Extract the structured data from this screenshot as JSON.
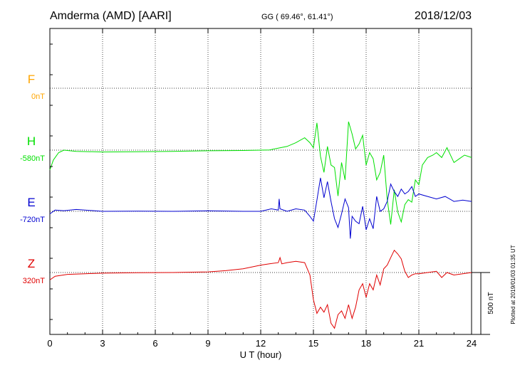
{
  "header": {
    "station": "Amderma (AMD)  [AARI]",
    "coords": "GG ( 69.46°,  61.41°)",
    "date": "2018/12/03"
  },
  "plot_note": "Plotted at 2019/01/03 01:35 UT",
  "scale_bar_label": "500 nT",
  "chart_data": {
    "type": "line",
    "xlabel": "U T (hour)",
    "xlim": [
      0,
      24
    ],
    "xticks": [
      0,
      3,
      6,
      9,
      12,
      15,
      18,
      21,
      24
    ],
    "grid": true,
    "scale_bar_nT": 500,
    "series": [
      {
        "name": "F",
        "baseline": "0nT",
        "color": "#ffa500",
        "x": [],
        "values": []
      },
      {
        "name": "H",
        "baseline": "-580nT",
        "color": "#00e000",
        "x": [
          0,
          0.2,
          0.5,
          0.8,
          1.5,
          3,
          5,
          7,
          9,
          11,
          12.5,
          13.5,
          14,
          14.5,
          14.8,
          15,
          15.2,
          15.4,
          15.6,
          15.8,
          16,
          16.2,
          16.4,
          16.6,
          16.8,
          17,
          17.2,
          17.4,
          17.6,
          17.8,
          18,
          18.2,
          18.4,
          18.6,
          18.8,
          19,
          19.2,
          19.4,
          19.6,
          19.8,
          20,
          20.2,
          20.4,
          20.6,
          20.8,
          21,
          21.2,
          21.5,
          21.8,
          22,
          22.3,
          22.6,
          23,
          23.3,
          23.6,
          24
        ],
        "values": [
          -740,
          -660,
          -600,
          -580,
          -590,
          -595,
          -593,
          -590,
          -585,
          -583,
          -578,
          -550,
          -520,
          -480,
          -520,
          -560,
          -360,
          -630,
          -760,
          -550,
          -700,
          -720,
          -950,
          -680,
          -820,
          -350,
          -450,
          -570,
          -530,
          -460,
          -700,
          -600,
          -650,
          -820,
          -760,
          -620,
          -980,
          -1180,
          -900,
          -1080,
          -1160,
          -1020,
          -980,
          -1000,
          -820,
          -860,
          -700,
          -640,
          -620,
          -600,
          -640,
          -560,
          -680,
          -650,
          -620,
          -640
        ]
      },
      {
        "name": "E",
        "baseline": "-720nT",
        "color": "#0000d0",
        "x": [
          0,
          0.3,
          0.8,
          1.5,
          3,
          5,
          7,
          9,
          11,
          12,
          12.6,
          13,
          13.05,
          13.1,
          13.5,
          14,
          14.5,
          14.8,
          15,
          15.2,
          15.4,
          15.6,
          15.8,
          16,
          16.2,
          16.4,
          16.6,
          16.8,
          17,
          17.1,
          17.2,
          17.4,
          17.6,
          17.8,
          18,
          18.2,
          18.4,
          18.6,
          18.8,
          19,
          19.2,
          19.4,
          19.6,
          19.8,
          20,
          20.2,
          20.4,
          20.6,
          20.8,
          21,
          21.5,
          22,
          22.5,
          23,
          23.5,
          24
        ],
        "values": [
          -740,
          -710,
          -715,
          -705,
          -720,
          -718,
          -720,
          -716,
          -720,
          -720,
          -700,
          -710,
          -620,
          -700,
          -720,
          -700,
          -710,
          -760,
          -800,
          -630,
          -450,
          -610,
          -480,
          -640,
          -780,
          -850,
          -740,
          -620,
          -690,
          -940,
          -760,
          -800,
          -820,
          -680,
          -870,
          -780,
          -860,
          -600,
          -720,
          -700,
          -640,
          -500,
          -560,
          -600,
          -540,
          -580,
          -560,
          -520,
          -600,
          -580,
          -600,
          -620,
          -600,
          -640,
          -630,
          -640
        ]
      },
      {
        "name": "Z",
        "baseline": "320nT",
        "color": "#e00000",
        "x": [
          0,
          0.3,
          1,
          2,
          3,
          5,
          7,
          9,
          10,
          11,
          12,
          12.5,
          13,
          13.1,
          13.2,
          13.5,
          14,
          14.5,
          14.8,
          15,
          15.2,
          15.4,
          15.6,
          15.8,
          16,
          16.2,
          16.4,
          16.6,
          16.8,
          17,
          17.2,
          17.4,
          17.6,
          17.8,
          18,
          18.2,
          18.4,
          18.6,
          18.8,
          19,
          19.2,
          19.4,
          19.6,
          19.8,
          20,
          20.2,
          20.4,
          20.6,
          20.8,
          21,
          21.5,
          22,
          22.3,
          22.6,
          23,
          23.5,
          24
        ],
        "values": [
          260,
          290,
          305,
          310,
          315,
          318,
          320,
          325,
          335,
          350,
          380,
          390,
          400,
          440,
          390,
          400,
          410,
          400,
          300,
          100,
          -10,
          40,
          0,
          60,
          -90,
          -130,
          -20,
          10,
          -50,
          60,
          -50,
          40,
          180,
          230,
          120,
          230,
          180,
          300,
          220,
          350,
          380,
          440,
          500,
          470,
          430,
          330,
          280,
          300,
          310,
          310,
          320,
          330,
          280,
          320,
          300,
          310,
          320
        ]
      }
    ]
  }
}
